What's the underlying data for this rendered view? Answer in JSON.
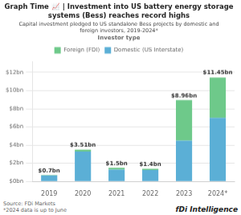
{
  "chart_data": {
    "type": "bar",
    "stacked": true,
    "title": "Graph Time 📈 | Investment into US battery energy storage\nsystems (Bess) reaches record highs",
    "subtitle": "Capital investment pledged to US standalone Bess projects by domestic and\nforeign investors, 2019-2024*",
    "legend_title": "Investor type",
    "categories": [
      "2019",
      "2020",
      "2021",
      "2022",
      "2023",
      "2024*"
    ],
    "series": [
      {
        "name": "Domestic (US Interstate)",
        "color": "#5bafd6",
        "values": [
          0.65,
          3.3,
          1.3,
          1.25,
          4.5,
          7.0
        ]
      },
      {
        "name": "Foreign (FDI)",
        "color": "#6ec98a",
        "values": [
          0.05,
          0.21,
          0.2,
          0.15,
          4.46,
          4.45
        ]
      }
    ],
    "totals": [
      0.7,
      3.51,
      1.5,
      1.4,
      8.96,
      11.45
    ],
    "total_labels": [
      "$0.7bn",
      "$3.51bn",
      "$1.5bn",
      "$1.4bn",
      "$8.96bn",
      "$11.45bn"
    ],
    "ylim": [
      0,
      13.2
    ],
    "yticks": [
      {
        "value": 0,
        "label": "$0bn"
      },
      {
        "value": 2,
        "label": "$2bn"
      },
      {
        "value": 4,
        "label": "$4bn"
      },
      {
        "value": 6,
        "label": "$6bn"
      },
      {
        "value": 8,
        "label": "$8bn"
      },
      {
        "value": 10,
        "label": "$10bn"
      },
      {
        "value": 12,
        "label": "$12bn"
      }
    ],
    "grid": true,
    "legend": "top",
    "source": "Source: FDi Markets\n*2024 data is up to June",
    "logo": "fDi Intelligence"
  }
}
